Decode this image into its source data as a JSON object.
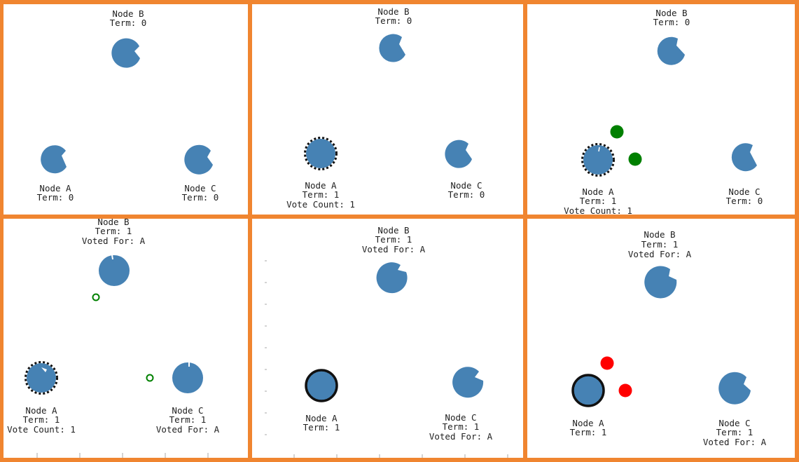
{
  "colors": {
    "frame": "#f08530",
    "node": "#4682b4",
    "vote_granted": "#008000",
    "heartbeat": "#ff0000",
    "panel_bg": "#ffffff"
  },
  "panels": [
    {
      "nodes": [
        {
          "id": "B",
          "lines": [
            "Node B",
            "Term: 0"
          ],
          "border": "none"
        },
        {
          "id": "A",
          "lines": [
            "Node A",
            "Term: 0"
          ],
          "border": "none"
        },
        {
          "id": "C",
          "lines": [
            "Node C",
            "Term: 0"
          ],
          "border": "none"
        }
      ]
    },
    {
      "nodes": [
        {
          "id": "B",
          "lines": [
            "Node B",
            "Term: 0"
          ],
          "border": "none"
        },
        {
          "id": "A",
          "lines": [
            "Node A",
            "Term: 1",
            "Vote Count: 1"
          ],
          "border": "dashed"
        },
        {
          "id": "C",
          "lines": [
            "Node C",
            "Term: 0"
          ],
          "border": "none"
        }
      ]
    },
    {
      "nodes": [
        {
          "id": "B",
          "lines": [
            "Node B",
            "Term: 0"
          ],
          "border": "none"
        },
        {
          "id": "A",
          "lines": [
            "Node A",
            "Term: 1",
            "Vote Count: 1"
          ],
          "border": "dashed"
        },
        {
          "id": "C",
          "lines": [
            "Node C",
            "Term: 0"
          ],
          "border": "none"
        }
      ],
      "messages": [
        {
          "kind": "vote_request",
          "style": "filled",
          "color": "green"
        },
        {
          "kind": "vote_request",
          "style": "filled",
          "color": "green"
        }
      ]
    },
    {
      "nodes": [
        {
          "id": "B",
          "lines": [
            "Node B",
            "Term: 1",
            "Voted For: A"
          ],
          "border": "none"
        },
        {
          "id": "A",
          "lines": [
            "Node A",
            "Term: 1",
            "Vote Count: 1"
          ],
          "border": "dashed"
        },
        {
          "id": "C",
          "lines": [
            "Node C",
            "Term: 1",
            "Voted For: A"
          ],
          "border": "none"
        }
      ],
      "messages": [
        {
          "kind": "vote_response",
          "style": "hollow",
          "color": "green"
        },
        {
          "kind": "vote_response",
          "style": "hollow",
          "color": "green"
        }
      ]
    },
    {
      "nodes": [
        {
          "id": "B",
          "lines": [
            "Node B",
            "Term: 1",
            "Voted For: A"
          ],
          "border": "none"
        },
        {
          "id": "A",
          "lines": [
            "Node A",
            "Term: 1"
          ],
          "border": "solid"
        },
        {
          "id": "C",
          "lines": [
            "Node C",
            "Term: 1",
            "Voted For: A"
          ],
          "border": "none"
        }
      ]
    },
    {
      "nodes": [
        {
          "id": "B",
          "lines": [
            "Node B",
            "Term: 1",
            "Voted For: A"
          ],
          "border": "none"
        },
        {
          "id": "A",
          "lines": [
            "Node A",
            "Term: 1"
          ],
          "border": "solid"
        },
        {
          "id": "C",
          "lines": [
            "Node C",
            "Term: 1",
            "Voted For: A"
          ],
          "border": "none"
        }
      ],
      "messages": [
        {
          "kind": "heartbeat",
          "style": "filled",
          "color": "red"
        },
        {
          "kind": "heartbeat",
          "style": "filled",
          "color": "red"
        }
      ]
    }
  ]
}
